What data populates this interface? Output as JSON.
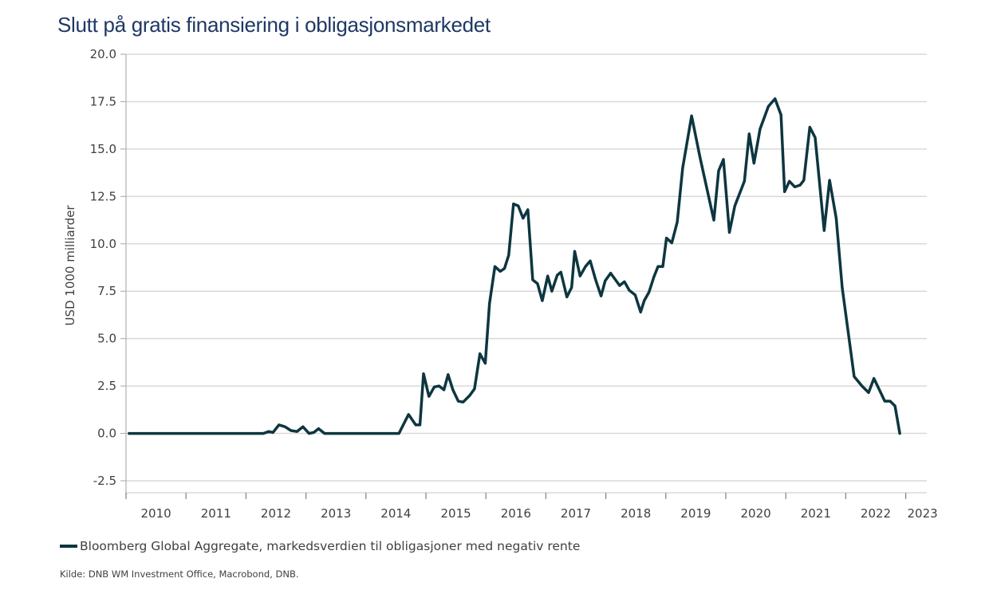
{
  "chart_data": {
    "type": "line",
    "title": "Slutt på gratis finansiering i obligasjonsmarkedet",
    "xlabel": "",
    "ylabel": "USD 1000 milliarder",
    "ylim": [
      -2.5,
      20.0
    ],
    "xlim": [
      2010,
      2023.35
    ],
    "yticks": [
      "20.0",
      "17.5",
      "15.0",
      "12.5",
      "10.0",
      "7.5",
      "5.0",
      "2.5",
      "0.0",
      "-2.5"
    ],
    "ytick_values": [
      20.0,
      17.5,
      15.0,
      12.5,
      10.0,
      7.5,
      5.0,
      2.5,
      0.0,
      -2.5
    ],
    "xticks": [
      "2010",
      "2011",
      "2012",
      "2013",
      "2014",
      "2015",
      "2016",
      "2017",
      "2018",
      "2019",
      "2020",
      "2021",
      "2022",
      "2023"
    ],
    "grid": true,
    "legend_position": "bottom-left",
    "color": "#0d3640",
    "series": [
      {
        "name": "Bloomberg Global Aggregate, markedsverdien til obligasjoner med negativ rente",
        "x": [
          2010.05,
          2010.5,
          2011.0,
          2011.5,
          2012.0,
          2012.29,
          2012.38,
          2012.45,
          2012.55,
          2012.65,
          2012.75,
          2012.85,
          2012.95,
          2013.05,
          2013.13,
          2013.21,
          2013.31,
          2013.5,
          2014.0,
          2014.2,
          2014.55,
          2014.71,
          2014.83,
          2014.9,
          2014.96,
          2015.05,
          2015.14,
          2015.22,
          2015.3,
          2015.37,
          2015.45,
          2015.54,
          2015.62,
          2015.73,
          2015.81,
          2015.9,
          2015.99,
          2016.06,
          2016.15,
          2016.24,
          2016.31,
          2016.38,
          2016.46,
          2016.54,
          2016.62,
          2016.7,
          2016.78,
          2016.86,
          2016.94,
          2017.03,
          2017.1,
          2017.19,
          2017.25,
          2017.35,
          2017.43,
          2017.48,
          2017.57,
          2017.66,
          2017.74,
          2017.83,
          2017.92,
          2017.99,
          2018.08,
          2018.23,
          2018.31,
          2018.39,
          2018.49,
          2018.58,
          2018.64,
          2018.72,
          2018.8,
          2018.87,
          2018.95,
          2019.01,
          2019.1,
          2019.19,
          2019.28,
          2019.43,
          2019.57,
          2019.8,
          2019.88,
          2019.96,
          2020.06,
          2020.15,
          2020.31,
          2020.39,
          2020.47,
          2020.57,
          2020.71,
          2020.82,
          2020.92,
          2020.98,
          2021.06,
          2021.15,
          2021.24,
          2021.3,
          2021.4,
          2021.49,
          2021.64,
          2021.73,
          2021.84,
          2021.94,
          2022.14,
          2022.27,
          2022.38,
          2022.47,
          2022.65,
          2022.74,
          2022.82,
          2022.9
        ],
        "y": [
          0.0,
          0.0,
          0.0,
          0.0,
          0.0,
          0.0,
          0.1,
          0.05,
          0.45,
          0.35,
          0.15,
          0.1,
          0.35,
          0.0,
          0.05,
          0.25,
          0.0,
          0.0,
          0.0,
          0.0,
          0.0,
          1.0,
          0.45,
          0.45,
          3.15,
          1.95,
          2.45,
          2.5,
          2.3,
          3.1,
          2.3,
          1.7,
          1.65,
          2.0,
          2.35,
          4.2,
          3.7,
          6.85,
          8.8,
          8.55,
          8.7,
          9.4,
          12.1,
          12.0,
          11.35,
          11.8,
          8.1,
          7.9,
          7.0,
          8.3,
          7.5,
          8.35,
          8.5,
          7.2,
          7.7,
          9.6,
          8.3,
          8.8,
          9.1,
          8.1,
          7.25,
          8.05,
          8.45,
          7.8,
          8.0,
          7.55,
          7.3,
          6.4,
          7.0,
          7.45,
          8.25,
          8.8,
          8.8,
          10.3,
          10.05,
          11.15,
          14.0,
          16.75,
          14.55,
          11.25,
          13.85,
          14.45,
          10.6,
          12.0,
          13.3,
          15.8,
          14.25,
          16.05,
          17.25,
          17.65,
          16.8,
          12.75,
          13.3,
          13.0,
          13.1,
          13.35,
          16.15,
          15.6,
          10.7,
          13.35,
          11.35,
          7.7,
          3.0,
          2.5,
          2.15,
          2.9,
          1.7,
          1.7,
          1.45,
          0.0
        ]
      }
    ]
  },
  "legend": {
    "label": "Bloomberg Global Aggregate, markedsverdien til obligasjoner med negativ rente"
  },
  "source": "Kilde: DNB WM Investment Office, Macrobond, DNB."
}
